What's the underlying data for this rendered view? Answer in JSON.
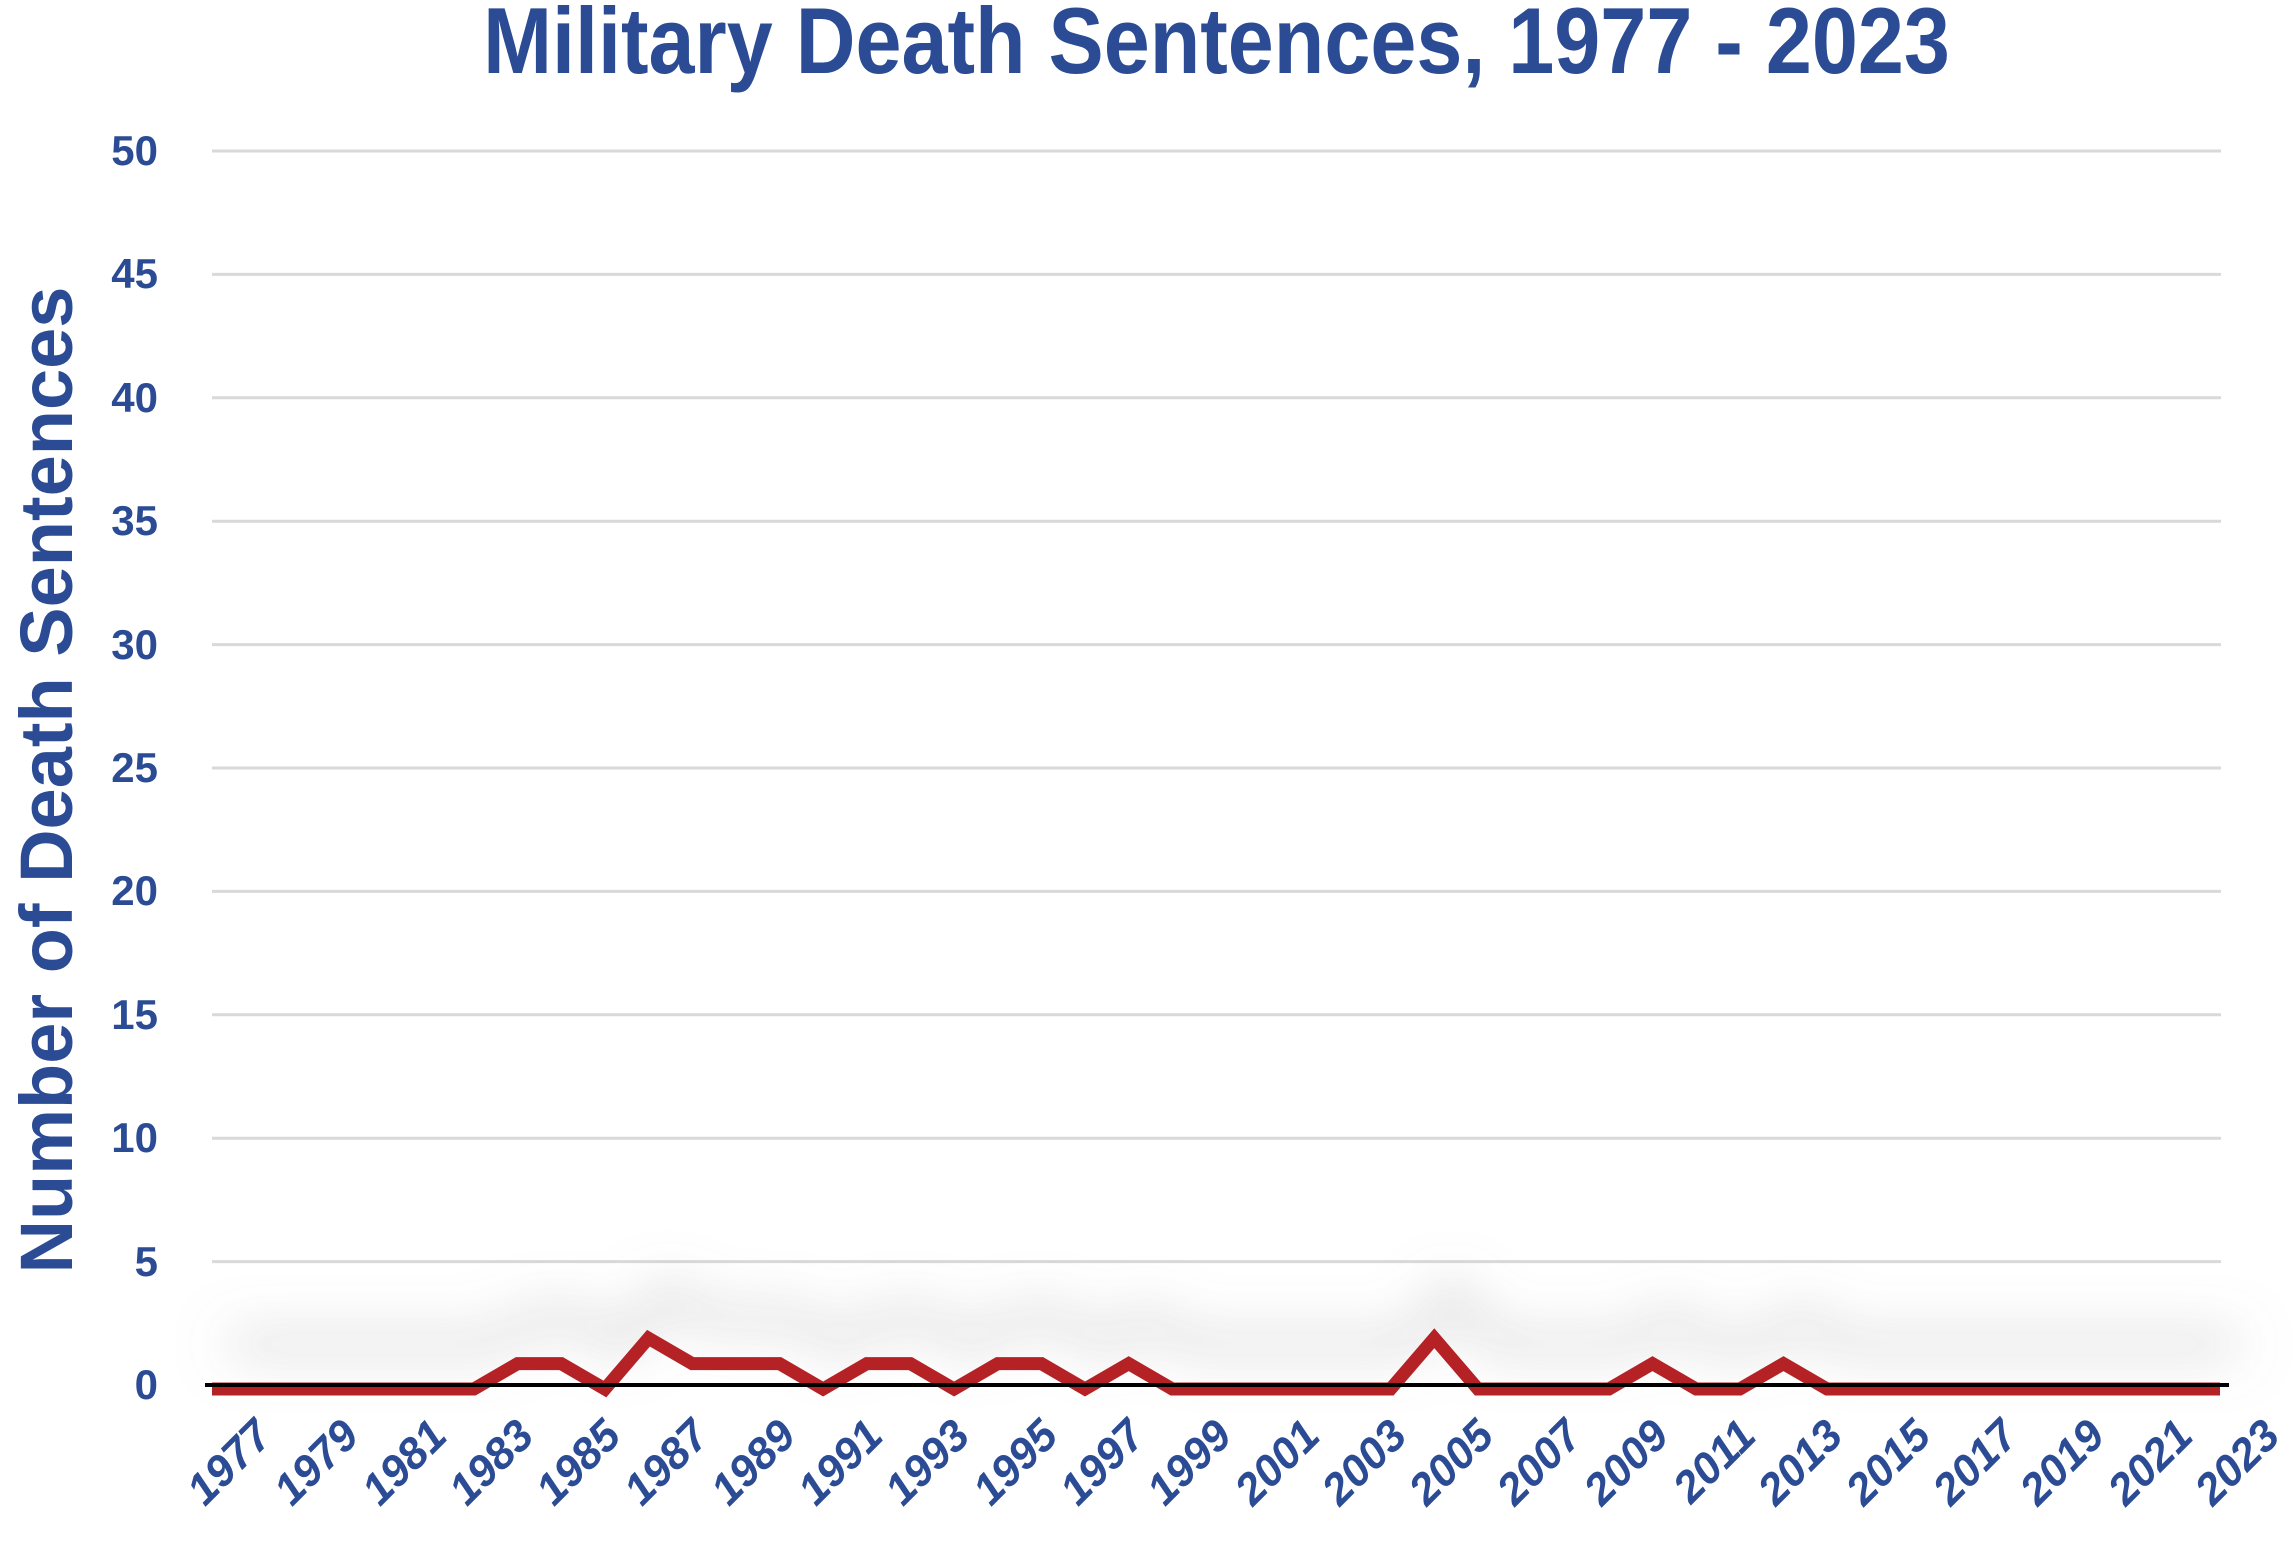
{
  "title": "Military Death Sentences, 1977 - 2023",
  "y_axis_title": "Number of Death Sentences",
  "colors": {
    "label_blue": "#2B4C94",
    "line_red": "#B42025",
    "gridline_gray": "#D9D9D9",
    "axis_black": "#000000",
    "shadow_gray": "#888888",
    "background": "#FFFFFF"
  },
  "chart_data": {
    "type": "line",
    "title": "Military Death Sentences, 1977 - 2023",
    "xlabel": "",
    "ylabel": "Number of Death Sentences",
    "x": [
      1977,
      1978,
      1979,
      1980,
      1981,
      1982,
      1983,
      1984,
      1985,
      1986,
      1987,
      1988,
      1989,
      1990,
      1991,
      1992,
      1993,
      1994,
      1995,
      1996,
      1997,
      1998,
      1999,
      2000,
      2001,
      2002,
      2003,
      2004,
      2005,
      2006,
      2007,
      2008,
      2009,
      2010,
      2011,
      2012,
      2013,
      2014,
      2015,
      2016,
      2017,
      2018,
      2019,
      2020,
      2021,
      2022,
      2023
    ],
    "values": [
      0,
      0,
      0,
      0,
      0,
      0,
      0,
      1,
      1,
      0,
      2,
      1,
      1,
      1,
      0,
      1,
      1,
      0,
      1,
      1,
      0,
      1,
      0,
      0,
      0,
      0,
      0,
      0,
      2,
      0,
      0,
      0,
      0,
      1,
      0,
      0,
      1,
      0,
      0,
      0,
      0,
      0,
      0,
      0,
      0,
      0,
      0
    ],
    "ylim": [
      0,
      50
    ],
    "ytick_step": 5,
    "y_tick_labels": [
      "0",
      "5",
      "10",
      "15",
      "20",
      "25",
      "30",
      "35",
      "40",
      "45",
      "50"
    ],
    "xtick_step": 2,
    "x_tick_labels": [
      "1977",
      "1979",
      "1981",
      "1983",
      "1985",
      "1987",
      "1989",
      "1991",
      "1993",
      "1995",
      "1997",
      "1999",
      "2001",
      "2003",
      "2005",
      "2007",
      "2009",
      "2011",
      "2013",
      "2015",
      "2017",
      "2019",
      "2021",
      "2023"
    ],
    "grid": "horizontal",
    "legend": "none",
    "series_color": "#B42025"
  }
}
